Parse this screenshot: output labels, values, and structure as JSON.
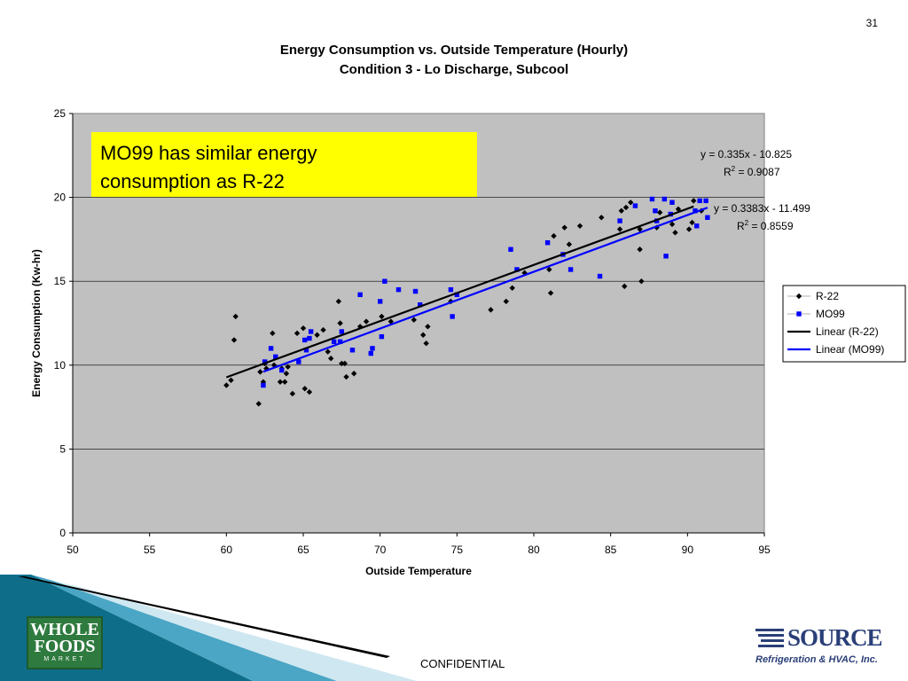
{
  "slide_number": "31",
  "footer": {
    "confidential": "CONFIDENTIAL",
    "left_logo_text": [
      "WHOLE",
      "FOODS",
      "MARKET"
    ],
    "right_logo_word": "SOURCE",
    "right_logo_tagline": "Refrigeration & HVAC, Inc."
  },
  "colors": {
    "plot_bg": "#c0c0c0",
    "callout_bg": "#ffff00",
    "r22": "#000000",
    "mo99": "#0000ff",
    "footer_teal": "#0e6e8a"
  },
  "chart_data": {
    "type": "scatter",
    "title": "Energy Consumption vs. Outside Temperature (Hourly)",
    "subtitle": "Condition 3 - Lo Discharge, Subcool",
    "xlabel": "Outside Temperature",
    "ylabel": "Energy Consumption (Kw-hr)",
    "xlim": [
      50,
      95
    ],
    "ylim": [
      0,
      25
    ],
    "x_ticks": [
      "50",
      "55",
      "60",
      "65",
      "70",
      "75",
      "80",
      "85",
      "90",
      "95"
    ],
    "y_ticks": [
      "0",
      "5",
      "10",
      "15",
      "20",
      "25"
    ],
    "grid": "horizontal",
    "legend_position": "right",
    "callout": [
      "MO99 has similar energy",
      "consumption as R-22"
    ],
    "series": [
      {
        "name": "R-22",
        "marker": "diamond",
        "color": "#000000",
        "points": [
          [
            60.0,
            8.8
          ],
          [
            60.3,
            9.1
          ],
          [
            60.5,
            11.5
          ],
          [
            60.6,
            12.9
          ],
          [
            62.1,
            7.7
          ],
          [
            62.2,
            9.6
          ],
          [
            62.4,
            9.0
          ],
          [
            62.5,
            10.1
          ],
          [
            62.6,
            9.8
          ],
          [
            63.0,
            11.9
          ],
          [
            63.1,
            10.0
          ],
          [
            63.5,
            9.0
          ],
          [
            63.6,
            9.8
          ],
          [
            63.8,
            9.0
          ],
          [
            63.9,
            9.5
          ],
          [
            64.0,
            9.9
          ],
          [
            64.3,
            8.3
          ],
          [
            64.6,
            11.9
          ],
          [
            65.0,
            12.2
          ],
          [
            65.1,
            8.6
          ],
          [
            65.4,
            8.4
          ],
          [
            65.9,
            11.8
          ],
          [
            66.3,
            12.1
          ],
          [
            66.6,
            10.8
          ],
          [
            66.8,
            10.4
          ],
          [
            67.3,
            13.8
          ],
          [
            67.4,
            12.5
          ],
          [
            67.5,
            10.1
          ],
          [
            67.7,
            10.1
          ],
          [
            67.8,
            9.3
          ],
          [
            68.3,
            9.5
          ],
          [
            68.7,
            12.3
          ],
          [
            69.1,
            12.6
          ],
          [
            70.1,
            12.9
          ],
          [
            70.7,
            12.6
          ],
          [
            72.2,
            12.7
          ],
          [
            72.8,
            11.8
          ],
          [
            73.0,
            11.3
          ],
          [
            73.1,
            12.3
          ],
          [
            74.6,
            13.8
          ],
          [
            77.2,
            13.3
          ],
          [
            78.2,
            13.8
          ],
          [
            78.6,
            14.6
          ],
          [
            79.4,
            15.5
          ],
          [
            81.0,
            15.7
          ],
          [
            81.1,
            14.3
          ],
          [
            81.3,
            17.7
          ],
          [
            82.0,
            18.2
          ],
          [
            82.3,
            17.2
          ],
          [
            83.0,
            18.3
          ],
          [
            84.4,
            18.8
          ],
          [
            85.6,
            18.1
          ],
          [
            85.7,
            19.2
          ],
          [
            85.9,
            14.7
          ],
          [
            86.0,
            19.4
          ],
          [
            86.3,
            19.7
          ],
          [
            86.9,
            18.1
          ],
          [
            86.9,
            16.9
          ],
          [
            87.0,
            15.0
          ],
          [
            88.0,
            18.2
          ],
          [
            88.2,
            19.1
          ],
          [
            89.0,
            18.4
          ],
          [
            89.2,
            17.9
          ],
          [
            89.4,
            19.3
          ],
          [
            90.1,
            18.1
          ],
          [
            90.3,
            18.5
          ],
          [
            90.4,
            19.8
          ],
          [
            90.9,
            19.2
          ]
        ]
      },
      {
        "name": "MO99",
        "marker": "square",
        "color": "#0000ff",
        "points": [
          [
            62.4,
            8.8
          ],
          [
            62.5,
            10.2
          ],
          [
            62.9,
            11.0
          ],
          [
            63.2,
            10.5
          ],
          [
            63.6,
            9.7
          ],
          [
            64.7,
            10.2
          ],
          [
            65.1,
            11.5
          ],
          [
            65.2,
            10.9
          ],
          [
            65.4,
            11.6
          ],
          [
            65.5,
            12.0
          ],
          [
            67.0,
            11.4
          ],
          [
            67.4,
            11.4
          ],
          [
            67.5,
            12.0
          ],
          [
            68.2,
            10.9
          ],
          [
            68.7,
            14.2
          ],
          [
            69.4,
            10.7
          ],
          [
            69.5,
            11.0
          ],
          [
            70.0,
            13.8
          ],
          [
            70.1,
            11.7
          ],
          [
            70.3,
            15.0
          ],
          [
            71.2,
            14.5
          ],
          [
            72.3,
            14.4
          ],
          [
            72.6,
            13.6
          ],
          [
            74.6,
            14.5
          ],
          [
            74.7,
            12.9
          ],
          [
            75.0,
            14.2
          ],
          [
            78.5,
            16.9
          ],
          [
            78.9,
            15.7
          ],
          [
            80.9,
            17.3
          ],
          [
            81.9,
            16.6
          ],
          [
            82.4,
            15.7
          ],
          [
            84.3,
            15.3
          ],
          [
            85.6,
            18.6
          ],
          [
            86.6,
            19.5
          ],
          [
            87.7,
            19.9
          ],
          [
            87.9,
            19.2
          ],
          [
            88.0,
            18.6
          ],
          [
            88.5,
            19.9
          ],
          [
            88.6,
            16.5
          ],
          [
            88.9,
            19.0
          ],
          [
            89.0,
            19.7
          ],
          [
            90.6,
            18.3
          ],
          [
            90.8,
            19.8
          ],
          [
            91.2,
            19.8
          ],
          [
            91.3,
            18.8
          ],
          [
            90.5,
            19.2
          ]
        ]
      }
    ],
    "trendlines": [
      {
        "name": "Linear (R-22)",
        "color": "#000000",
        "slope": 0.335,
        "intercept": -10.825,
        "x_range": [
          60.0,
          90.4
        ],
        "equation": "y = 0.335x - 10.825",
        "r2_label": "R",
        "r2_value": " = 0.9087"
      },
      {
        "name": "Linear (MO99)",
        "color": "#0000ff",
        "slope": 0.3383,
        "intercept": -11.499,
        "x_range": [
          62.4,
          91.3
        ],
        "equation": "y = 0.3383x - 11.499",
        "r2_label": "R",
        "r2_value": " = 0.8559"
      }
    ]
  }
}
